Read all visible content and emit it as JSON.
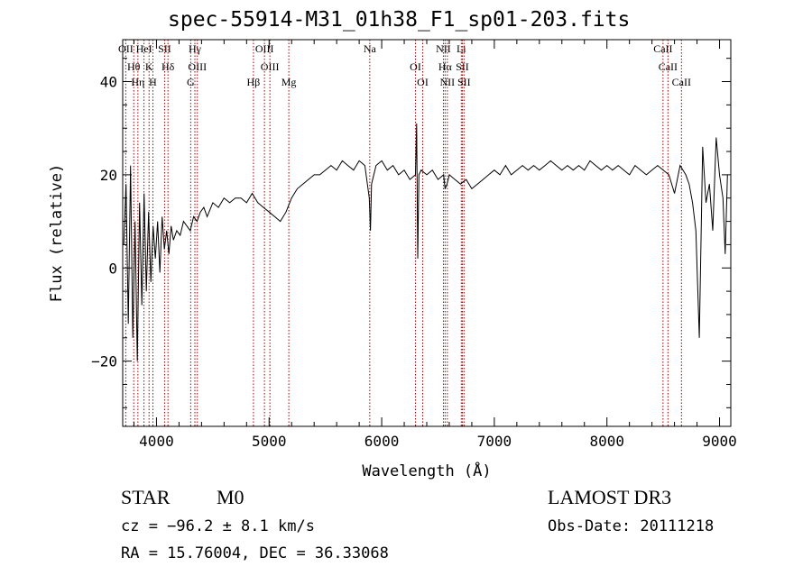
{
  "chart_data": {
    "type": "line",
    "title": "spec-55914-M31_01h38_F1_sp01-203.fits",
    "xlabel": "Wavelength (Å)",
    "ylabel": "Flux (relative)",
    "xlim": [
      3700,
      9100
    ],
    "ylim": [
      -34,
      49
    ],
    "xticks": [
      4000,
      5000,
      6000,
      7000,
      8000,
      9000
    ],
    "xtick_labels": [
      "4000",
      "5000",
      "6000",
      "7000",
      "8000",
      "9000"
    ],
    "yticks": [
      -20,
      0,
      20,
      40
    ],
    "ytick_labels": [
      "−20",
      "0",
      "20",
      "40"
    ],
    "grid": false,
    "series": [
      {
        "name": "flux",
        "x": [
          3710,
          3730,
          3750,
          3770,
          3790,
          3810,
          3830,
          3850,
          3870,
          3890,
          3910,
          3930,
          3950,
          3970,
          3990,
          4010,
          4030,
          4050,
          4070,
          4090,
          4110,
          4130,
          4150,
          4180,
          4210,
          4240,
          4270,
          4300,
          4330,
          4360,
          4390,
          4420,
          4450,
          4500,
          4550,
          4600,
          4650,
          4700,
          4750,
          4800,
          4850,
          4900,
          4950,
          5000,
          5050,
          5100,
          5150,
          5200,
          5250,
          5300,
          5350,
          5400,
          5450,
          5500,
          5550,
          5600,
          5650,
          5700,
          5750,
          5800,
          5850,
          5890,
          5900,
          5910,
          5950,
          6000,
          6050,
          6100,
          6150,
          6200,
          6250,
          6300,
          6310,
          6320,
          6330,
          6350,
          6400,
          6450,
          6500,
          6550,
          6563,
          6580,
          6600,
          6650,
          6700,
          6750,
          6800,
          6850,
          6900,
          6950,
          7000,
          7050,
          7100,
          7150,
          7200,
          7250,
          7300,
          7350,
          7400,
          7450,
          7500,
          7550,
          7600,
          7650,
          7700,
          7750,
          7800,
          7850,
          7900,
          7950,
          8000,
          8050,
          8100,
          8150,
          8200,
          8250,
          8300,
          8350,
          8400,
          8450,
          8500,
          8550,
          8600,
          8650,
          8700,
          8730,
          8760,
          8790,
          8820,
          8850,
          8880,
          8910,
          8940,
          8970,
          9000,
          9030,
          9050,
          9070
        ],
        "values": [
          5,
          18,
          -12,
          22,
          -15,
          10,
          -20,
          14,
          -8,
          16,
          -5,
          12,
          -3,
          9,
          2,
          10,
          -1,
          11,
          4,
          8,
          3,
          9,
          6,
          8,
          7,
          10,
          9,
          8,
          11,
          10,
          12,
          13,
          11,
          14,
          13,
          15,
          14,
          15,
          15,
          14,
          16,
          14,
          13,
          12,
          11,
          10,
          12,
          15,
          17,
          18,
          19,
          20,
          20,
          21,
          22,
          21,
          23,
          22,
          21,
          23,
          22,
          15,
          8,
          18,
          22,
          23,
          21,
          22,
          20,
          21,
          19,
          20,
          31,
          2,
          20,
          21,
          20,
          21,
          19,
          20,
          17,
          18,
          20,
          19,
          18,
          19,
          17,
          18,
          19,
          20,
          21,
          20,
          22,
          20,
          21,
          22,
          21,
          22,
          21,
          22,
          23,
          22,
          21,
          22,
          21,
          22,
          21,
          23,
          22,
          21,
          22,
          21,
          22,
          21,
          20,
          22,
          21,
          20,
          21,
          22,
          21,
          20,
          16,
          22,
          20,
          18,
          14,
          8,
          -15,
          26,
          14,
          18,
          8,
          28,
          20,
          15,
          3,
          20
        ]
      }
    ],
    "lines": [
      {
        "label": "OII",
        "x": 3727
      },
      {
        "label": "Hθ",
        "x": 3798
      },
      {
        "label": "Hη",
        "x": 3835
      },
      {
        "label": "HeI",
        "x": 3889
      },
      {
        "label": "K",
        "x": 3934
      },
      {
        "label": "H",
        "x": 3968
      },
      {
        "label": "SII",
        "x": 4072
      },
      {
        "label": "Hδ",
        "x": 4102
      },
      {
        "label": "G",
        "x": 4304
      },
      {
        "label": "Hγ",
        "x": 4341
      },
      {
        "label": "OIII",
        "x": 4363
      },
      {
        "label": "Hβ",
        "x": 4861
      },
      {
        "label": "OIII",
        "x": 4959
      },
      {
        "label": "OIII",
        "x": 5007
      },
      {
        "label": "Mg",
        "x": 5175
      },
      {
        "label": "Na",
        "x": 5894
      },
      {
        "label": "OI",
        "x": 6300
      },
      {
        "label": "OI",
        "x": 6364
      },
      {
        "label": "NII",
        "x": 6548
      },
      {
        "label": "Hα",
        "x": 6563
      },
      {
        "label": "NII",
        "x": 6583
      },
      {
        "label": "Li",
        "x": 6707
      },
      {
        "label": "SII",
        "x": 6716
      },
      {
        "label": "SII",
        "x": 6731
      },
      {
        "label": "CaII",
        "x": 8498
      },
      {
        "label": "CaII",
        "x": 8542
      },
      {
        "label": "CaII",
        "x": 8662
      }
    ]
  },
  "info": {
    "object_class": "STAR",
    "subclass": "M0",
    "survey": "LAMOST DR3",
    "cz": "cz = −96.2 ± 8.1 km/s",
    "obs_date": "Obs-Date: 20111218",
    "coords": "RA =  15.76004, DEC =  36.33068"
  },
  "colors": {
    "spectrum": "#000000",
    "line_marker": "#aa0000",
    "axes": "#000000",
    "background": "#ffffff"
  }
}
